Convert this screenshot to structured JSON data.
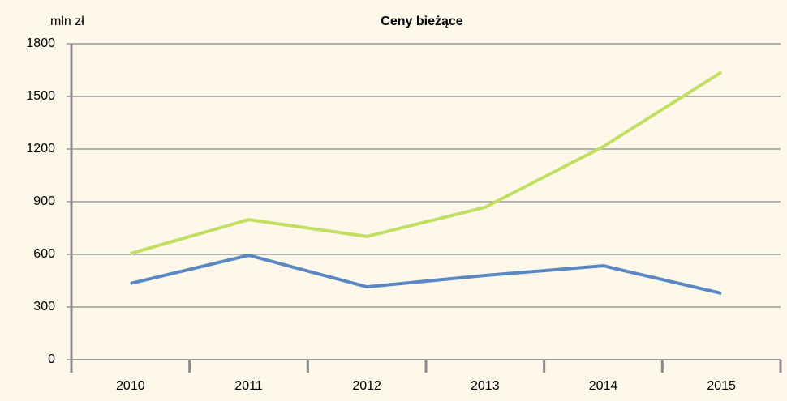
{
  "chart_data": {
    "type": "line",
    "title": "Ceny bieżące",
    "y_label": "mln zł",
    "categories": [
      "2010",
      "2011",
      "2012",
      "2013",
      "2014",
      "2015"
    ],
    "series": [
      {
        "color": "#c3df63",
        "values": [
          605,
          798,
          702,
          868,
          1214,
          1638
        ]
      },
      {
        "color": "#5b87c4",
        "values": [
          434,
          595,
          415,
          480,
          535,
          378
        ]
      }
    ],
    "ylim": [
      0,
      1800
    ],
    "yticks": [
      0,
      300,
      600,
      900,
      1200,
      1500,
      1800
    ],
    "grid": true
  }
}
